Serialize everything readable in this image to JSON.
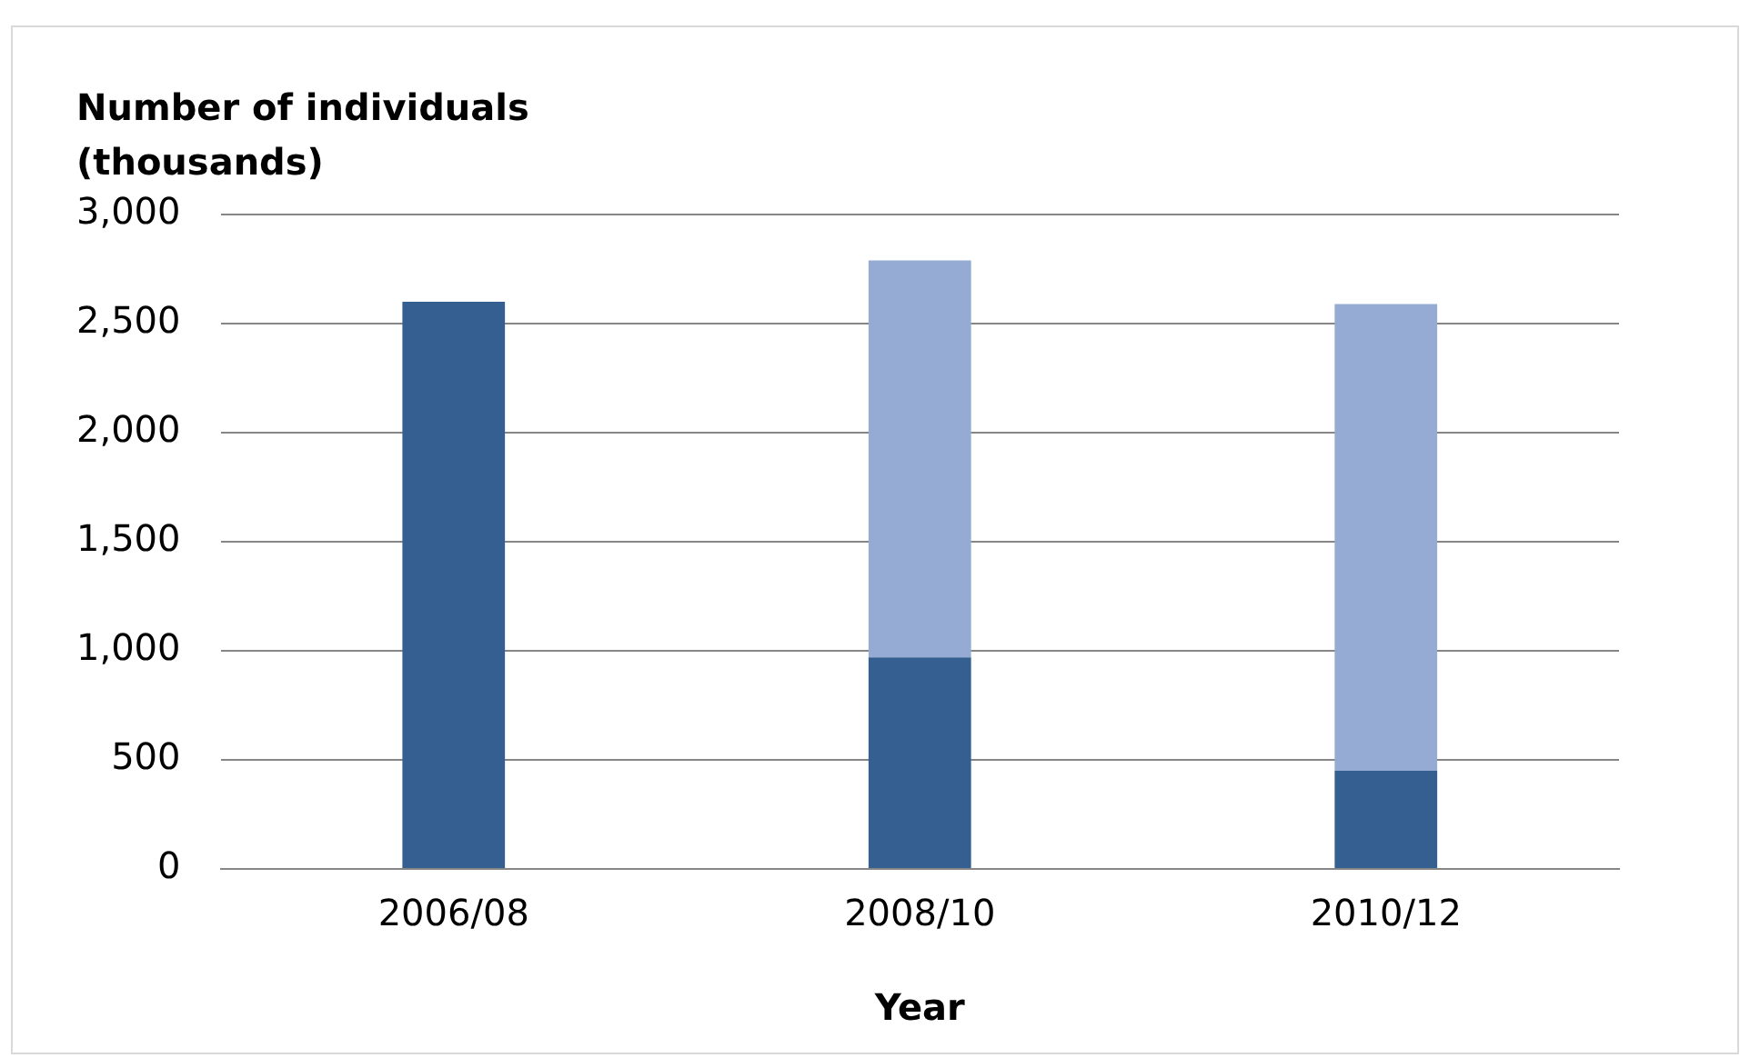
{
  "chart_data": {
    "type": "bar",
    "ylabel": "Number of individuals\n(thousands)",
    "xlabel": "Year",
    "categories": [
      "2006/08",
      "2008/10",
      "2010/12"
    ],
    "stacked": true,
    "series": [
      {
        "color": "#355f91",
        "values": [
          2600,
          970,
          450
        ]
      },
      {
        "color": "#95abd3",
        "values": [
          null,
          1820,
          2140
        ]
      }
    ],
    "ylim": [
      0,
      3000
    ],
    "yticks": [
      {
        "value": 0,
        "label": "0"
      },
      {
        "value": 500,
        "label": "500"
      },
      {
        "value": 1000,
        "label": "1,000"
      },
      {
        "value": 1500,
        "label": "1,500"
      },
      {
        "value": 2000,
        "label": "2,000"
      },
      {
        "value": 2500,
        "label": "2,500"
      },
      {
        "value": 3000,
        "label": "3,000"
      }
    ],
    "grid": "y",
    "legend": false
  }
}
